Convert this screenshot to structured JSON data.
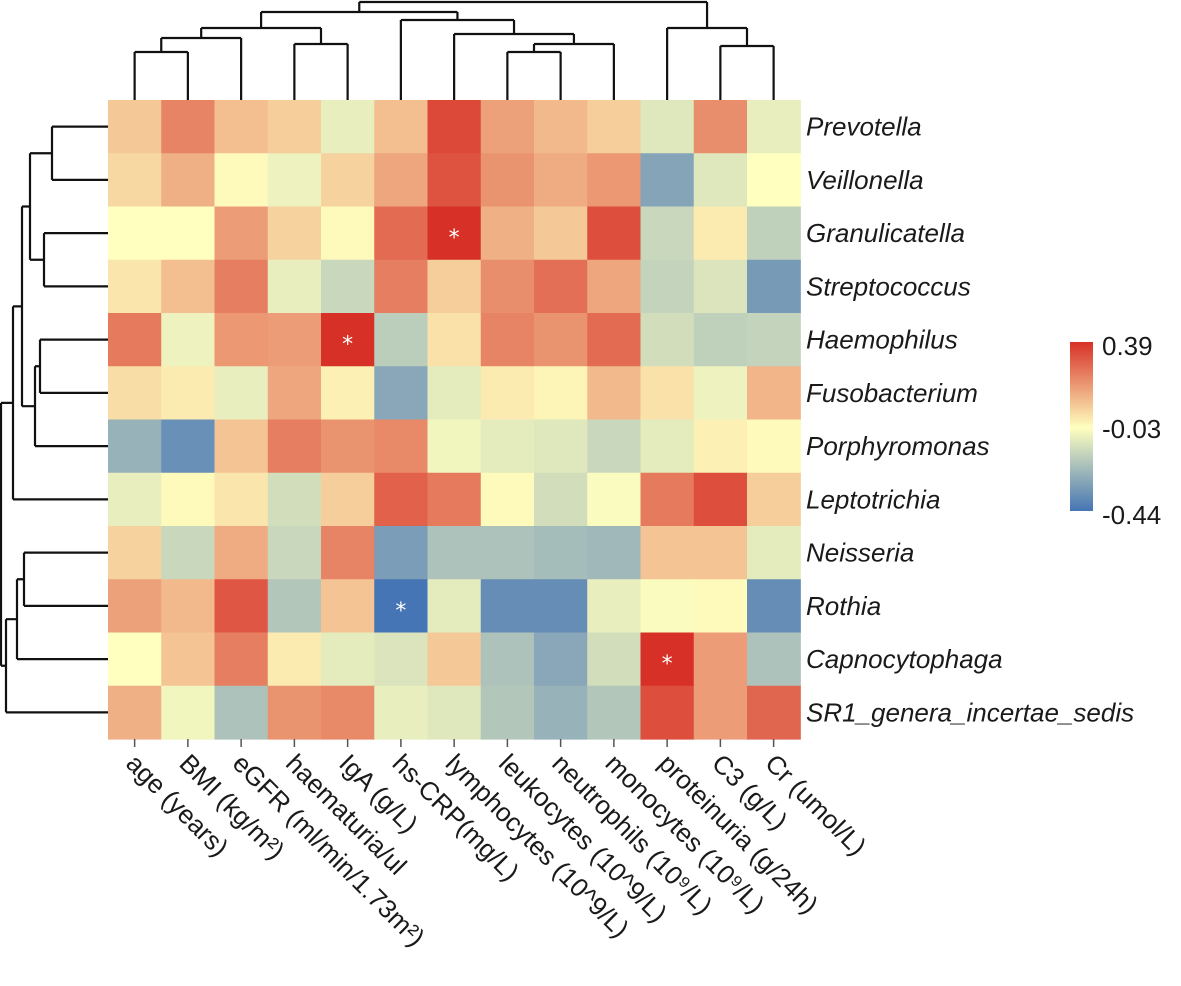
{
  "chart_data": {
    "type": "heatmap",
    "title": "",
    "rows": [
      "Prevotella",
      "Veillonella",
      "Granulicatella",
      "Streptococcus",
      "Haemophilus",
      "Fusobacterium",
      "Porphyromonas",
      "Leptotrichia",
      "Neisseria",
      "Rothia",
      "Capnocytophaga",
      "SR1_genera_incertae_sedis"
    ],
    "columns": [
      "age (years)",
      "BMI (kg/m²)",
      "eGFR (ml/min/1.73m²)",
      "haematuria/ul",
      "IgA (g/L)",
      "hs-CRP(mg/L)",
      "lymphocytes (10^9/L)",
      "leukocytes (10^9/L)",
      "neutrophils (10⁹/L)",
      "monocytes (10⁹/L)",
      "proteinuria (g/24h)",
      "C3 (g/L)",
      "Cr (umol/L)"
    ],
    "values": [
      [
        0.08,
        0.22,
        0.1,
        0.07,
        -0.08,
        0.1,
        0.34,
        0.16,
        0.11,
        0.07,
        -0.1,
        0.2,
        -0.08
      ],
      [
        0.05,
        0.13,
        -0.02,
        -0.07,
        0.06,
        0.15,
        0.32,
        0.19,
        0.14,
        0.18,
        -0.3,
        -0.1,
        -0.03
      ],
      [
        -0.03,
        -0.03,
        0.17,
        0.06,
        -0.02,
        0.27,
        0.39,
        0.13,
        0.08,
        0.33,
        -0.15,
        0.01,
        -0.17
      ],
      [
        0.02,
        0.1,
        0.23,
        -0.08,
        -0.15,
        0.23,
        0.07,
        0.2,
        0.26,
        0.15,
        -0.16,
        -0.11,
        -0.33
      ],
      [
        0.24,
        -0.07,
        0.18,
        0.17,
        0.39,
        -0.18,
        0.03,
        0.22,
        0.19,
        0.27,
        -0.13,
        -0.17,
        -0.16
      ],
      [
        0.04,
        0.01,
        -0.08,
        0.15,
        0.0,
        -0.29,
        -0.09,
        0.01,
        -0.01,
        0.11,
        0.03,
        -0.07,
        0.12
      ],
      [
        -0.26,
        -0.36,
        0.09,
        0.23,
        0.19,
        0.21,
        -0.06,
        -0.09,
        -0.1,
        -0.15,
        -0.09,
        0.0,
        -0.02
      ],
      [
        -0.08,
        -0.02,
        0.02,
        -0.13,
        0.07,
        0.29,
        0.24,
        -0.02,
        -0.13,
        -0.04,
        0.24,
        0.33,
        0.07
      ],
      [
        0.06,
        -0.15,
        0.14,
        -0.15,
        0.22,
        -0.32,
        -0.21,
        -0.21,
        -0.23,
        -0.24,
        0.09,
        0.09,
        -0.09
      ],
      [
        0.16,
        0.11,
        0.31,
        -0.2,
        0.09,
        -0.44,
        -0.09,
        -0.37,
        -0.37,
        -0.08,
        -0.04,
        -0.02,
        -0.37
      ],
      [
        -0.03,
        0.09,
        0.23,
        0.01,
        -0.09,
        -0.11,
        0.08,
        -0.21,
        -0.29,
        -0.13,
        0.39,
        0.17,
        -0.21
      ],
      [
        0.13,
        -0.06,
        -0.21,
        0.19,
        0.21,
        -0.08,
        -0.1,
        -0.2,
        -0.26,
        -0.2,
        0.33,
        0.17,
        0.28
      ]
    ],
    "significant": [
      {
        "row": 2,
        "col": 6
      },
      {
        "row": 4,
        "col": 4
      },
      {
        "row": 9,
        "col": 5
      },
      {
        "row": 10,
        "col": 10
      }
    ],
    "significance_marker": "*",
    "color_scale": {
      "min": -0.44,
      "mid": -0.03,
      "max": 0.39,
      "colors": [
        "#4575b4",
        "#ffffbf",
        "#d73027"
      ],
      "tick_labels": [
        "0.39",
        "-0.03",
        "-0.44"
      ]
    },
    "row_dendrogram": true,
    "column_dendrogram": true,
    "legend_position": "right"
  }
}
